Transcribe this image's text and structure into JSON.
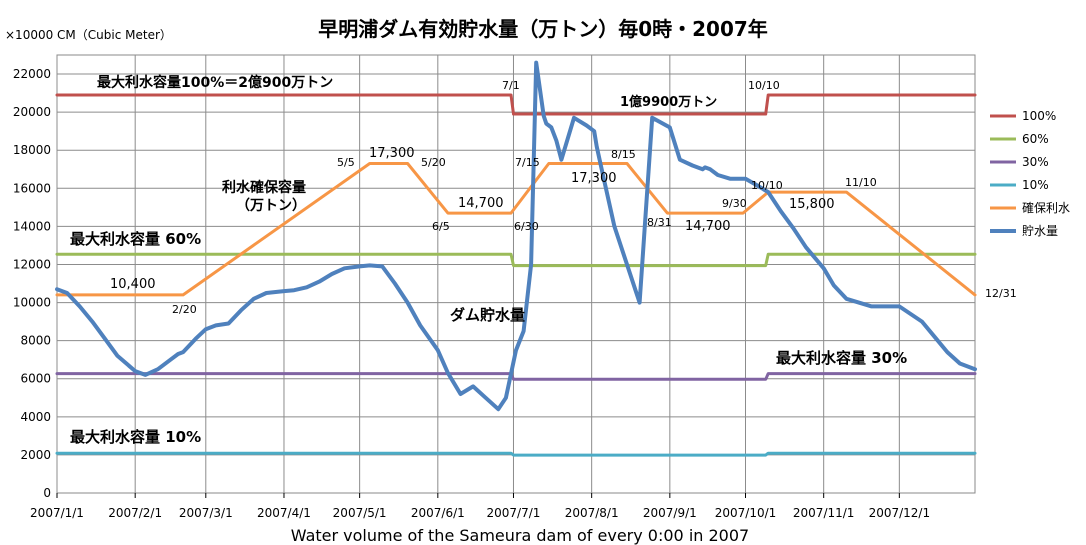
{
  "chart_data": {
    "type": "line",
    "title": "早明浦ダム有効貯水量（万トン）毎0時・2007年",
    "subtitle": "Water volume of the Sameura dam of every 0:00 in 2007",
    "ylabel": "×10000 CM（Cubic Meter）",
    "ylim": [
      0,
      23000
    ],
    "yticks": [
      0,
      2000,
      4000,
      6000,
      8000,
      10000,
      12000,
      14000,
      16000,
      18000,
      20000,
      22000
    ],
    "ytick_labels": [
      "0",
      "2000",
      "4000",
      "6000",
      "8000",
      "10000",
      "12000",
      "14000",
      "16000",
      "18000",
      "20000",
      "22000"
    ],
    "xlim": [
      "2007-01-01",
      "2007-12-31"
    ],
    "xticks": [
      "2007-01-01",
      "2007-02-01",
      "2007-03-01",
      "2007-04-01",
      "2007-05-01",
      "2007-06-01",
      "2007-07-01",
      "2007-08-01",
      "2007-09-01",
      "2007-10-01",
      "2007-11-01",
      "2007-12-01"
    ],
    "xtick_labels": [
      "2007/1/1",
      "2007/2/1",
      "2007/3/1",
      "2007/4/1",
      "2007/5/1",
      "2007/6/1",
      "2007/7/1",
      "2007/8/1",
      "2007/9/1",
      "2007/10/1",
      "2007/11/1",
      "2007/12/1"
    ],
    "grid": true,
    "legend": "right",
    "series": [
      {
        "name": "100%",
        "color": "#c0504d",
        "width": 3,
        "x": [
          "2007-01-01",
          "2007-06-30",
          "2007-07-01",
          "2007-10-09",
          "2007-10-10",
          "2007-12-31"
        ],
        "values": [
          20900,
          20900,
          19900,
          19900,
          20900,
          20900
        ]
      },
      {
        "name": "60%",
        "color": "#9bbb59",
        "width": 3,
        "x": [
          "2007-01-01",
          "2007-06-30",
          "2007-07-01",
          "2007-10-09",
          "2007-10-10",
          "2007-12-31"
        ],
        "values": [
          12540,
          12540,
          11940,
          11940,
          12540,
          12540
        ]
      },
      {
        "name": "30%",
        "color": "#8064a2",
        "width": 3,
        "x": [
          "2007-01-01",
          "2007-06-30",
          "2007-07-01",
          "2007-10-09",
          "2007-10-10",
          "2007-12-31"
        ],
        "values": [
          6270,
          6270,
          5970,
          5970,
          6270,
          6270
        ]
      },
      {
        "name": "10%",
        "color": "#4bacc6",
        "width": 3,
        "x": [
          "2007-01-01",
          "2007-06-30",
          "2007-07-01",
          "2007-10-09",
          "2007-10-10",
          "2007-12-31"
        ],
        "values": [
          2090,
          2090,
          1990,
          1990,
          2090,
          2090
        ]
      },
      {
        "name": "確保利水",
        "color": "#f79646",
        "width": 3,
        "x": [
          "2007-01-01",
          "2007-02-20",
          "2007-05-05",
          "2007-05-20",
          "2007-06-05",
          "2007-06-30",
          "2007-07-15",
          "2007-08-15",
          "2007-08-31",
          "2007-09-30",
          "2007-10-10",
          "2007-11-10",
          "2007-12-31"
        ],
        "values": [
          10400,
          10400,
          17300,
          17300,
          14700,
          14700,
          17300,
          17300,
          14700,
          14700,
          15800,
          15800,
          10400
        ]
      },
      {
        "name": "貯水量",
        "color": "#4f81bd",
        "width": 4,
        "x": [
          "2007-01-01",
          "2007-01-05",
          "2007-01-10",
          "2007-01-15",
          "2007-01-20",
          "2007-01-25",
          "2007-02-01",
          "2007-02-05",
          "2007-02-10",
          "2007-02-15",
          "2007-02-18",
          "2007-02-20",
          "2007-02-25",
          "2007-03-01",
          "2007-03-05",
          "2007-03-10",
          "2007-03-15",
          "2007-03-20",
          "2007-03-25",
          "2007-04-01",
          "2007-04-05",
          "2007-04-10",
          "2007-04-15",
          "2007-04-20",
          "2007-04-25",
          "2007-05-01",
          "2007-05-05",
          "2007-05-10",
          "2007-05-15",
          "2007-05-20",
          "2007-05-25",
          "2007-06-01",
          "2007-06-05",
          "2007-06-10",
          "2007-06-15",
          "2007-06-20",
          "2007-06-25",
          "2007-06-28",
          "2007-07-02",
          "2007-07-05",
          "2007-07-08",
          "2007-07-10",
          "2007-07-13",
          "2007-07-14",
          "2007-07-15",
          "2007-07-16",
          "2007-07-18",
          "2007-07-20",
          "2007-07-25",
          "2007-07-30",
          "2007-08-02",
          "2007-08-03",
          "2007-08-05",
          "2007-08-10",
          "2007-08-15",
          "2007-08-20",
          "2007-08-25",
          "2007-09-01",
          "2007-09-05",
          "2007-09-10",
          "2007-09-14",
          "2007-09-15",
          "2007-09-17",
          "2007-09-20",
          "2007-09-25",
          "2007-10-01",
          "2007-10-05",
          "2007-10-10",
          "2007-10-15",
          "2007-10-20",
          "2007-10-25",
          "2007-11-01",
          "2007-11-05",
          "2007-11-10",
          "2007-11-20",
          "2007-12-01",
          "2007-12-10",
          "2007-12-15",
          "2007-12-20",
          "2007-12-25",
          "2007-12-31"
        ],
        "values": [
          10700,
          10500,
          9800,
          9000,
          8100,
          7200,
          6400,
          6200,
          6500,
          7000,
          7300,
          7400,
          8100,
          8600,
          8800,
          8900,
          9600,
          10200,
          10500,
          10600,
          10650,
          10800,
          11100,
          11500,
          11800,
          11900,
          11950,
          11900,
          11000,
          10000,
          8800,
          7500,
          6300,
          5200,
          5600,
          5000,
          4400,
          5000,
          7500,
          8500,
          12000,
          22600,
          19800,
          19400,
          19300,
          19200,
          18500,
          17500,
          19700,
          19300,
          19000,
          18200,
          17000,
          14000,
          12000,
          10000,
          19700,
          19200,
          17500,
          17200,
          17000,
          17100,
          17000,
          16700,
          16500,
          16500,
          16200,
          15800,
          14800,
          13900,
          12900,
          11800,
          10900,
          10200,
          9800,
          9800,
          9000,
          8200,
          7400,
          6800,
          6500
        ]
      }
    ],
    "annotations": {
      "max_capacity": "最大利水容量100%＝2億900万トン",
      "flood_capacity": "1億9900万トン",
      "cap_60": "最大利水容量 60%",
      "cap_30": "最大利水容量 30%",
      "cap_10": "最大利水容量 10%",
      "reserve": "利水確保容量",
      "reserve_unit": "（万トン）",
      "dam_volume": "ダム貯水量",
      "d_0701": "7/1",
      "d_1010_top": "10/10",
      "d_0505": "5/5",
      "d_0520": "5/20",
      "d_0605": "6/5",
      "d_0630": "6/30",
      "d_0715": "7/15",
      "d_0815": "8/15",
      "d_0220": "2/20",
      "d_0831": "8/31",
      "d_0930": "9/30",
      "d_1010": "10/10",
      "d_1110": "11/10",
      "d_1231": "12/31",
      "v_10400": "10,400",
      "v_17300a": "17,300",
      "v_14700a": "14,700",
      "v_17300b": "17,300",
      "v_14700b": "14,700",
      "v_15800": "15,800"
    }
  }
}
